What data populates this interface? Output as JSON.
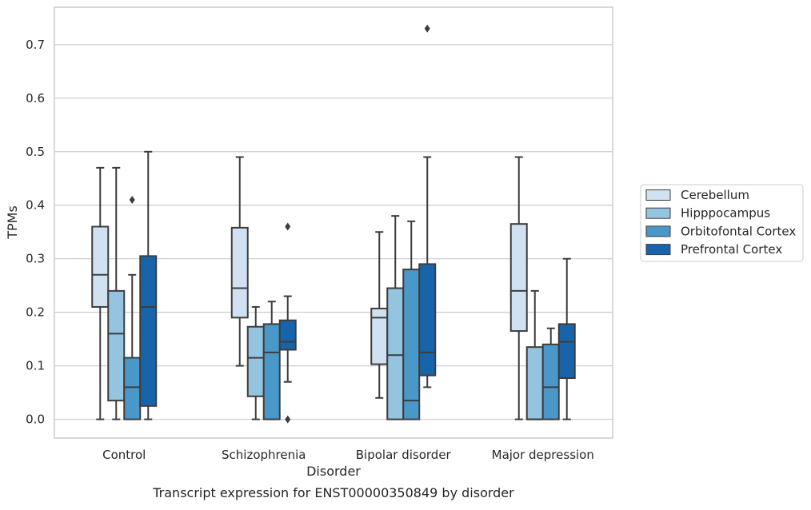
{
  "chart_data": {
    "type": "boxplot",
    "xlabel": "Disorder",
    "ylabel": "TPMs",
    "caption": "Transcript expression for ENST00000350849 by disorder",
    "ylim": [
      -0.035,
      0.77
    ],
    "yticks": [
      "0.0",
      "0.1",
      "0.2",
      "0.3",
      "0.4",
      "0.5",
      "0.6",
      "0.7"
    ],
    "categories": [
      "Control",
      "Schizophrenia",
      "Bipolar disorder",
      "Major depression"
    ],
    "grid": "horizontal",
    "legend_position": "right",
    "series": [
      {
        "name": "Cerebellum",
        "color": "#d0e1f2",
        "boxes": [
          {
            "whislo": 0.0,
            "q1": 0.21,
            "med": 0.27,
            "q3": 0.36,
            "whishi": 0.47,
            "fliers": []
          },
          {
            "whislo": 0.1,
            "q1": 0.19,
            "med": 0.245,
            "q3": 0.358,
            "whishi": 0.49,
            "fliers": []
          },
          {
            "whislo": 0.04,
            "q1": 0.103,
            "med": 0.19,
            "q3": 0.207,
            "whishi": 0.35,
            "fliers": []
          },
          {
            "whislo": 0.0,
            "q1": 0.165,
            "med": 0.24,
            "q3": 0.365,
            "whishi": 0.49,
            "fliers": []
          }
        ]
      },
      {
        "name": "Hipppocampus",
        "color": "#94c4df",
        "boxes": [
          {
            "whislo": 0.0,
            "q1": 0.035,
            "med": 0.16,
            "q3": 0.24,
            "whishi": 0.47,
            "fliers": []
          },
          {
            "whislo": 0.0,
            "q1": 0.043,
            "med": 0.115,
            "q3": 0.173,
            "whishi": 0.21,
            "fliers": []
          },
          {
            "whislo": 0.0,
            "q1": 0.0,
            "med": 0.12,
            "q3": 0.245,
            "whishi": 0.38,
            "fliers": []
          },
          {
            "whislo": 0.0,
            "q1": 0.0,
            "med": 0.0,
            "q3": 0.135,
            "whishi": 0.24,
            "fliers": []
          }
        ]
      },
      {
        "name": "Orbitofontal Cortex",
        "color": "#4a98c9",
        "boxes": [
          {
            "whislo": 0.0,
            "q1": 0.0,
            "med": 0.06,
            "q3": 0.115,
            "whishi": 0.27,
            "fliers": [
              0.41
            ]
          },
          {
            "whislo": 0.0,
            "q1": 0.0,
            "med": 0.125,
            "q3": 0.178,
            "whishi": 0.22,
            "fliers": []
          },
          {
            "whislo": 0.0,
            "q1": 0.0,
            "med": 0.035,
            "q3": 0.28,
            "whishi": 0.37,
            "fliers": []
          },
          {
            "whislo": 0.0,
            "q1": 0.0,
            "med": 0.06,
            "q3": 0.14,
            "whishi": 0.17,
            "fliers": []
          }
        ]
      },
      {
        "name": "Prefrontal Cortex",
        "color": "#1764ab",
        "boxes": [
          {
            "whislo": 0.0,
            "q1": 0.025,
            "med": 0.21,
            "q3": 0.305,
            "whishi": 0.5,
            "fliers": []
          },
          {
            "whislo": 0.07,
            "q1": 0.13,
            "med": 0.145,
            "q3": 0.185,
            "whishi": 0.23,
            "fliers": [
              0.36,
              0.0
            ]
          },
          {
            "whislo": 0.06,
            "q1": 0.082,
            "med": 0.125,
            "q3": 0.29,
            "whishi": 0.49,
            "fliers": [
              0.73
            ]
          },
          {
            "whislo": 0.0,
            "q1": 0.077,
            "med": 0.145,
            "q3": 0.178,
            "whishi": 0.3,
            "fliers": []
          }
        ]
      }
    ]
  }
}
